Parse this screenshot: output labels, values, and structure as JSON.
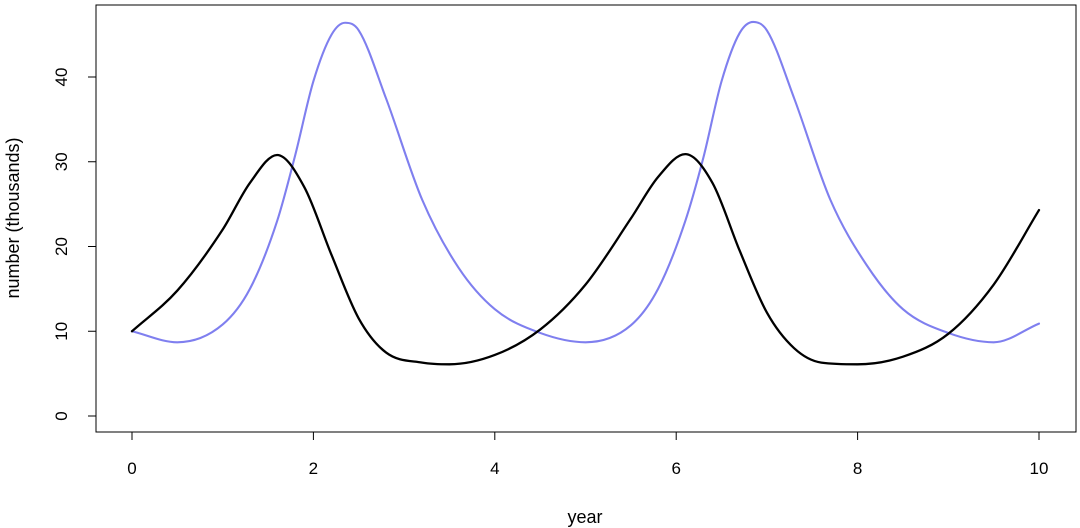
{
  "chart_data": {
    "type": "line",
    "title": "",
    "xlabel": "year",
    "ylabel": "number (thousands)",
    "xlim": [
      0,
      10
    ],
    "ylim": [
      0,
      46
    ],
    "x_ticks": [
      0,
      2,
      4,
      6,
      8,
      10
    ],
    "y_ticks": [
      0,
      10,
      20,
      30,
      40
    ],
    "grid": false,
    "legend": "none",
    "series": [
      {
        "color": "#000000",
        "x": [
          0,
          0.5,
          1.0,
          1.3,
          1.6,
          1.9,
          2.2,
          2.5,
          2.8,
          3.2,
          3.5,
          4.0,
          4.5,
          5.0,
          5.5,
          5.8,
          6.1,
          6.4,
          6.7,
          7.0,
          7.3,
          7.6,
          8.0,
          8.5,
          9.0,
          9.5,
          10.0
        ],
        "values": [
          10.0,
          14.8,
          22.0,
          27.5,
          30.8,
          27.0,
          19.0,
          11.5,
          7.5,
          6.3,
          6.1,
          7.2,
          10.2,
          15.5,
          23.3,
          28.2,
          30.9,
          27.5,
          19.5,
          12.2,
          8.0,
          6.3,
          6.1,
          7.0,
          9.7,
          15.5,
          24.3
        ]
      },
      {
        "color": "#7f7fef",
        "x": [
          0,
          0.5,
          1.0,
          1.3,
          1.6,
          1.8,
          2.0,
          2.2,
          2.35,
          2.5,
          2.8,
          3.2,
          3.6,
          4.0,
          4.5,
          5.0,
          5.5,
          5.8,
          6.1,
          6.3,
          6.5,
          6.7,
          6.85,
          7.0,
          7.3,
          7.7,
          8.1,
          8.5,
          9.0,
          9.5,
          10.0
        ],
        "values": [
          10.0,
          8.7,
          10.8,
          15.0,
          23.0,
          30.8,
          39.5,
          45.0,
          46.4,
          45.5,
          37.5,
          25.5,
          17.5,
          12.6,
          9.8,
          8.7,
          10.7,
          15.0,
          23.0,
          30.5,
          39.5,
          45.2,
          46.5,
          45.5,
          37.5,
          25.5,
          17.8,
          12.6,
          9.8,
          8.7,
          10.9
        ]
      }
    ]
  }
}
